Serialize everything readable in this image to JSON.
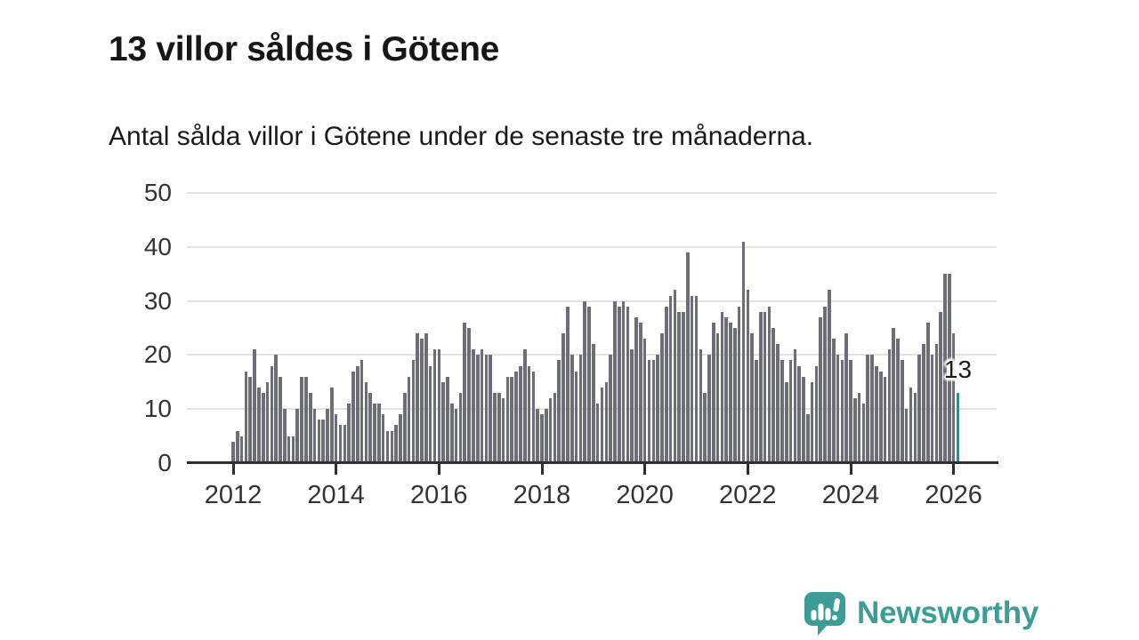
{
  "header": {
    "title": "13 villor såldes i Götene",
    "subtitle": "Antal sålda villor i Götene under de senaste tre månaderna."
  },
  "chart_data": {
    "type": "bar",
    "title": "13 villor såldes i Götene",
    "subtitle": "Antal sålda villor i Götene under de senaste tre månaderna.",
    "x_start": "2012-01",
    "x_end": "2026-02",
    "frequency": "monthly",
    "values": [
      4,
      6,
      5,
      17,
      16,
      21,
      14,
      13,
      15,
      18,
      20,
      16,
      10,
      5,
      5,
      10,
      16,
      16,
      13,
      10,
      8,
      8,
      10,
      14,
      9,
      7,
      7,
      11,
      17,
      18,
      19,
      15,
      13,
      11,
      11,
      9,
      6,
      6,
      7,
      9,
      13,
      16,
      19,
      24,
      23,
      24,
      18,
      21,
      21,
      15,
      16,
      11,
      10,
      13,
      26,
      25,
      21,
      20,
      21,
      20,
      20,
      13,
      13,
      12,
      16,
      16,
      17,
      18,
      21,
      18,
      17,
      10,
      9,
      10,
      12,
      13,
      19,
      24,
      29,
      20,
      17,
      20,
      30,
      29,
      22,
      11,
      14,
      15,
      20,
      30,
      29,
      30,
      29,
      21,
      27,
      26,
      23,
      19,
      19,
      20,
      24,
      29,
      31,
      32,
      28,
      28,
      39,
      31,
      31,
      21,
      13,
      20,
      26,
      24,
      28,
      27,
      26,
      25,
      29,
      41,
      32,
      24,
      19,
      28,
      28,
      29,
      25,
      22,
      19,
      15,
      19,
      21,
      18,
      16,
      9,
      15,
      18,
      27,
      29,
      32,
      23,
      20,
      19,
      24,
      19,
      12,
      13,
      11,
      20,
      20,
      18,
      17,
      16,
      21,
      25,
      23,
      19,
      10,
      14,
      13,
      20,
      22,
      26,
      20,
      22,
      28,
      35,
      35,
      24,
      13
    ],
    "highlight_last": true,
    "annotation": {
      "text": "13"
    },
    "ylim": [
      0,
      50
    ],
    "yticks": [
      0,
      10,
      20,
      30,
      40,
      50
    ],
    "xtick_years": [
      "2012",
      "2014",
      "2016",
      "2018",
      "2020",
      "2022",
      "2024",
      "2026"
    ],
    "grid": "horizontal",
    "legend": "none",
    "bar_color": "#6d6d76",
    "highlight_color": "#00a2a4",
    "gridline_color": "#e2e2e2",
    "axis_color": "#2e2e31",
    "tick_label_color": "#333333"
  },
  "branding": {
    "logo_text": "Newsworthy",
    "logo_color": "#3a9e96",
    "logo_icon": "newsworthy-speech-bubble-chart-icon"
  }
}
